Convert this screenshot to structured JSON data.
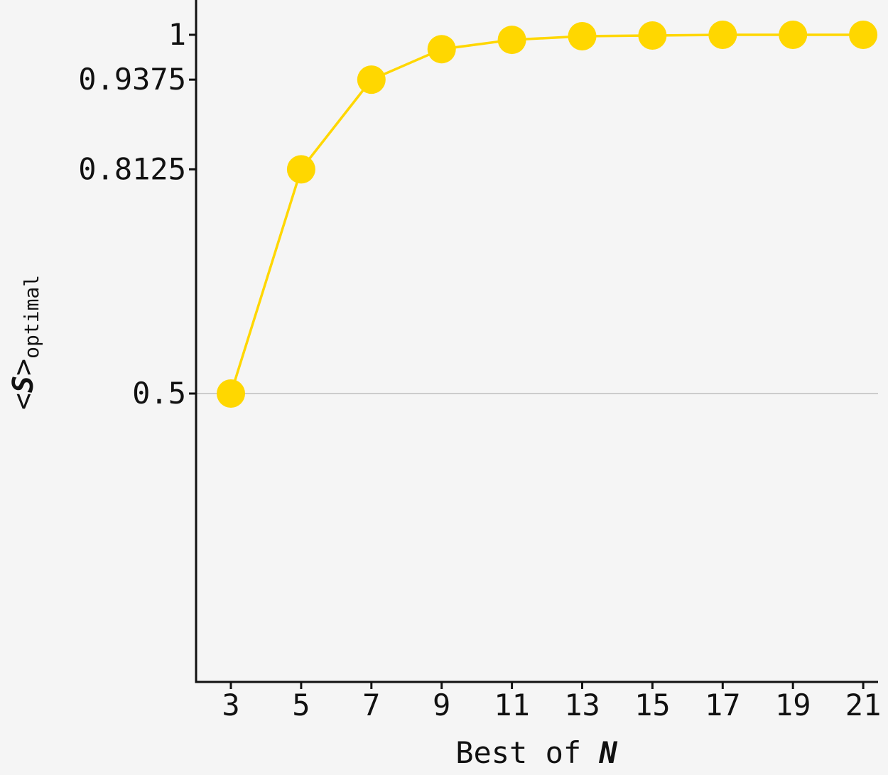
{
  "chart_data": {
    "type": "line",
    "title": "",
    "xlabel": "Best of ",
    "xlabel_var": "N",
    "ylabel": {
      "open": "<",
      "var": "S",
      "close": ">",
      "sub": "optimal"
    },
    "x": [
      3,
      5,
      7,
      9,
      11,
      13,
      15,
      17,
      19,
      21
    ],
    "series": [
      {
        "values": [
          0.5,
          0.8125,
          0.9375,
          0.98,
          0.993,
          0.998,
          0.999,
          1.0,
          1.0,
          1.0
        ]
      }
    ],
    "xticks": [
      "3",
      "5",
      "7",
      "9",
      "11",
      "13",
      "15",
      "17",
      "19",
      "21"
    ],
    "yticks": [
      {
        "value": 0.5,
        "label": "0.5"
      },
      {
        "value": 0.8125,
        "label": "0.8125"
      },
      {
        "value": 0.9375,
        "label": "0.9375"
      },
      {
        "value": 1,
        "label": "1"
      }
    ],
    "ylim": [
      0.1,
      1.0
    ],
    "reference_line": 0.5,
    "grid": false,
    "colors": {
      "series": "#ffd700",
      "axis": "#111111",
      "reference": "#cccccc",
      "background": "#f5f5f5"
    }
  }
}
